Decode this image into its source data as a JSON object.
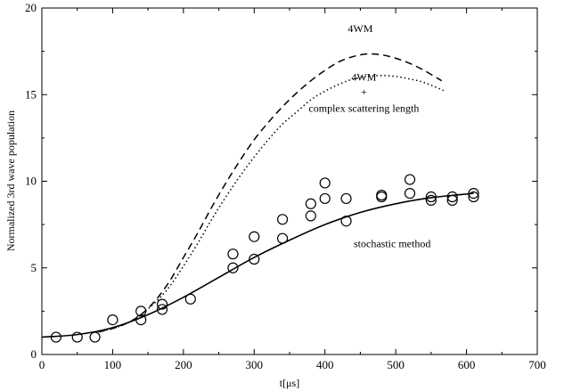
{
  "chart_data": {
    "type": "line",
    "title": "",
    "xlabel": "t[μs]",
    "ylabel": "Normalized 3rd wave population",
    "xlim": [
      0,
      700
    ],
    "ylim": [
      0,
      20
    ],
    "xticks": [
      0,
      100,
      200,
      300,
      400,
      500,
      600,
      700
    ],
    "yticks": [
      0,
      5,
      10,
      15,
      20
    ],
    "grid": false,
    "legend": "none",
    "series": [
      {
        "style": "dashed",
        "color": "#000000",
        "x": [
          80,
          100,
          120,
          140,
          160,
          180,
          200,
          220,
          240,
          260,
          280,
          300,
          320,
          340,
          360,
          380,
          400,
          420,
          440,
          460,
          480,
          500,
          520,
          540,
          565
        ],
        "y": [
          1.3,
          1.5,
          1.8,
          2.3,
          3.1,
          4.2,
          5.6,
          7.0,
          8.5,
          9.9,
          11.2,
          12.4,
          13.4,
          14.3,
          15.1,
          15.8,
          16.4,
          16.9,
          17.2,
          17.35,
          17.3,
          17.1,
          16.8,
          16.4,
          15.8
        ]
      },
      {
        "style": "dotted",
        "color": "#000000",
        "x": [
          80,
          100,
          120,
          140,
          160,
          180,
          200,
          220,
          240,
          260,
          280,
          300,
          320,
          340,
          360,
          380,
          400,
          420,
          440,
          460,
          480,
          500,
          520,
          540,
          570
        ],
        "y": [
          1.3,
          1.5,
          1.8,
          2.3,
          3.0,
          3.9,
          5.1,
          6.4,
          7.8,
          9.1,
          10.3,
          11.4,
          12.4,
          13.3,
          14.0,
          14.7,
          15.2,
          15.6,
          15.9,
          16.05,
          16.1,
          16.05,
          15.9,
          15.7,
          15.2
        ]
      },
      {
        "style": "solid",
        "color": "#000000",
        "x": [
          0,
          50,
          100,
          150,
          200,
          250,
          300,
          350,
          400,
          450,
          500,
          550,
          610
        ],
        "y": [
          1.0,
          1.15,
          1.55,
          2.3,
          3.3,
          4.45,
          5.6,
          6.6,
          7.5,
          8.2,
          8.7,
          9.05,
          9.3
        ]
      }
    ],
    "markers": {
      "shape": "open-circle",
      "points": [
        [
          20,
          1.0
        ],
        [
          50,
          1.0
        ],
        [
          75,
          1.0
        ],
        [
          100,
          2.0
        ],
        [
          140,
          2.5
        ],
        [
          140,
          2.0
        ],
        [
          170,
          2.9
        ],
        [
          170,
          2.6
        ],
        [
          210,
          3.2
        ],
        [
          270,
          5.8
        ],
        [
          270,
          5.0
        ],
        [
          300,
          6.8
        ],
        [
          300,
          5.5
        ],
        [
          340,
          7.8
        ],
        [
          340,
          6.7
        ],
        [
          380,
          8.7
        ],
        [
          380,
          8.0
        ],
        [
          400,
          9.9
        ],
        [
          400,
          9.0
        ],
        [
          430,
          9.0
        ],
        [
          430,
          7.7
        ],
        [
          480,
          9.2
        ],
        [
          480,
          9.1
        ],
        [
          520,
          10.1
        ],
        [
          520,
          9.3
        ],
        [
          550,
          9.1
        ],
        [
          550,
          8.9
        ],
        [
          580,
          9.1
        ],
        [
          580,
          8.9
        ],
        [
          610,
          9.3
        ],
        [
          610,
          9.1
        ]
      ]
    },
    "annotations": [
      {
        "text": "4WM",
        "x": 450,
        "y": 18.6
      },
      {
        "text": "4WM",
        "x": 455,
        "y": 15.8
      },
      {
        "text": "+",
        "x": 455,
        "y": 14.95
      },
      {
        "text": "complex scattering length",
        "x": 455,
        "y": 14.0
      },
      {
        "text": "stochastic method",
        "x": 495,
        "y": 6.2
      }
    ]
  }
}
